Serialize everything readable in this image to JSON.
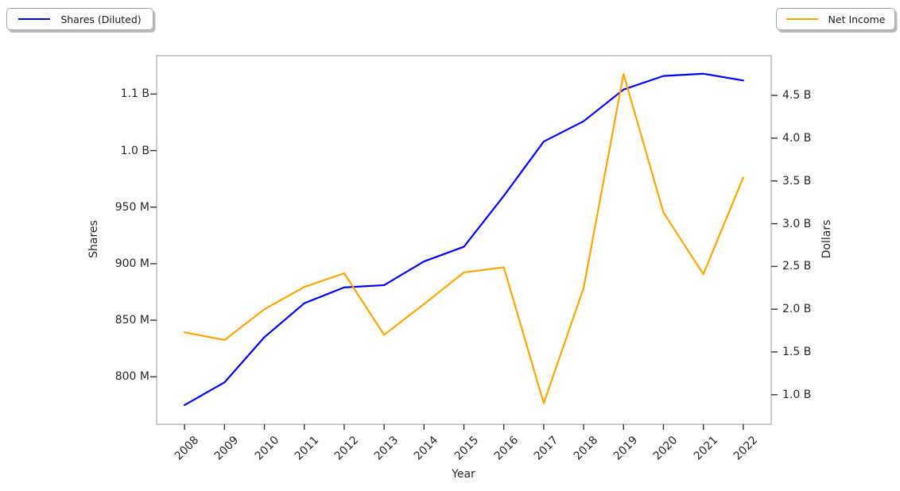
{
  "figure": {
    "background": "#ffffff",
    "legend_left_label": "Shares (Diluted)",
    "legend_right_label": "Net Income"
  },
  "chart_data": {
    "type": "line",
    "title": "",
    "xlabel": "Year",
    "grid": false,
    "legend_positions": [
      "outside upper left",
      "outside upper right"
    ],
    "x": [
      2008,
      2009,
      2010,
      2011,
      2012,
      2013,
      2014,
      2015,
      2016,
      2017,
      2018,
      2019,
      2020,
      2021,
      2022
    ],
    "x_tick_labels": [
      "2008",
      "2009",
      "2010",
      "2011",
      "2012",
      "2013",
      "2014",
      "2015",
      "2016",
      "2017",
      "2018",
      "2019",
      "2020",
      "2021",
      "2022"
    ],
    "xlim": [
      2007.3,
      2022.7
    ],
    "colors": {
      "shares_line": "#0000ff",
      "net_income_line": "#ffa500",
      "spine": "#cccccc",
      "tick_mark": "#333333",
      "text": "#262626"
    },
    "axes": {
      "left": {
        "label": "Shares",
        "unit": "millions of shares",
        "lim": [
          758,
          1084
        ],
        "ticks": [
          {
            "v": 800,
            "label": "800 M"
          },
          {
            "v": 850,
            "label": "850 M"
          },
          {
            "v": 900,
            "label": "900 M"
          },
          {
            "v": 950,
            "label": "950 M"
          },
          {
            "v": 1000,
            "label": "1.0 B"
          },
          {
            "v": 1050,
            "label": "1.1 B"
          }
        ]
      },
      "right": {
        "label": "Dollars",
        "unit": "billions of dollars",
        "lim": [
          0.655,
          4.965
        ],
        "ticks": [
          {
            "v": 1.0,
            "label": "1.0 B"
          },
          {
            "v": 1.5,
            "label": "1.5 B"
          },
          {
            "v": 2.0,
            "label": "2.0 B"
          },
          {
            "v": 2.5,
            "label": "2.5 B"
          },
          {
            "v": 3.0,
            "label": "3.0 B"
          },
          {
            "v": 3.5,
            "label": "3.5 B"
          },
          {
            "v": 4.0,
            "label": "4.0 B"
          },
          {
            "v": 4.5,
            "label": "4.5 B"
          }
        ]
      }
    },
    "series": [
      {
        "name": "Shares (Diluted)",
        "axis": "left",
        "color": "#0000ff",
        "values_unit": "millions",
        "values": [
          775,
          795,
          835,
          865,
          879,
          881,
          902,
          915,
          960,
          1008,
          1026,
          1054,
          1066,
          1068,
          1062
        ]
      },
      {
        "name": "Net Income",
        "axis": "right",
        "color": "#ffa500",
        "values_unit": "billions USD",
        "values": [
          1.73,
          1.64,
          2.0,
          2.26,
          2.42,
          1.7,
          2.06,
          2.43,
          2.49,
          0.9,
          2.25,
          4.75,
          3.13,
          2.41,
          3.54
        ]
      }
    ]
  }
}
